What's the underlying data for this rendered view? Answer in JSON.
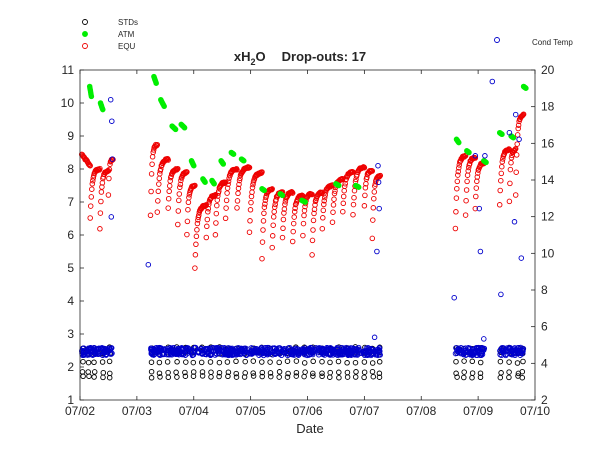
{
  "chart_data": {
    "type": "scatter",
    "title_main": "xH",
    "title_sub": "2",
    "title_tail": "O",
    "title_suffix": "Drop-outs: 17",
    "xlabel": "Date",
    "x_ticks": [
      "07/02",
      "07/03",
      "07/04",
      "07/05",
      "07/06",
      "07/07",
      "07/08",
      "07/09",
      "07/10"
    ],
    "xlim": [
      2,
      10
    ],
    "ylim_left": [
      1,
      11
    ],
    "y_ticks_left": [
      "1",
      "2",
      "3",
      "4",
      "5",
      "6",
      "7",
      "8",
      "9",
      "10",
      "11"
    ],
    "ylim_right": [
      2,
      20
    ],
    "y_ticks_right": [
      "2",
      "4",
      "6",
      "8",
      "10",
      "12",
      "14",
      "16",
      "18",
      "20"
    ],
    "grid": false,
    "legend": {
      "placement": "top-left-outside",
      "entries": [
        {
          "name": "STDs",
          "color": "#000000",
          "marker": "open-circle"
        },
        {
          "name": "ATM",
          "color": "#00ee00",
          "marker": "filled-circle"
        },
        {
          "name": "EQU",
          "color": "#ee0000",
          "marker": "open-circle"
        }
      ]
    },
    "right_axis_label": "Cond Temp",
    "right_axis_label_color": "#0000cc",
    "series": [
      {
        "name": "STDs",
        "axis": "left",
        "color": "#000000",
        "marker": "open-circle",
        "clusters": [
          {
            "start": 2.03,
            "end": 2.58
          },
          {
            "start": 3.24,
            "end": 7.28
          },
          {
            "start": 8.6,
            "end": 9.12
          },
          {
            "start": 9.38,
            "end": 9.8
          }
        ],
        "levels": [
          2.58,
          2.42,
          2.15,
          1.83,
          1.7
        ],
        "sample_days": [
          2.05,
          2.15,
          2.25,
          2.4,
          2.52,
          3.26,
          3.4,
          3.55,
          3.7,
          3.85,
          4.0,
          4.15,
          4.3,
          4.45,
          4.6,
          4.75,
          4.9,
          5.05,
          5.2,
          5.35,
          5.5,
          5.65,
          5.8,
          5.95,
          6.1,
          6.25,
          6.4,
          6.55,
          6.7,
          6.85,
          7.0,
          7.15,
          7.26,
          8.62,
          8.75,
          8.9,
          9.05,
          9.4,
          9.55,
          9.7,
          9.78
        ]
      },
      {
        "name": "ATM",
        "axis": "left",
        "color": "#00ee00",
        "marker": "filled-circle",
        "segments": [
          {
            "x": [
              2.17,
              2.2
            ],
            "y": [
              10.5,
              10.2
            ]
          },
          {
            "x": [
              2.36,
              2.4
            ],
            "y": [
              10.0,
              9.8
            ]
          },
          {
            "x": [
              3.3,
              3.34
            ],
            "y": [
              10.8,
              10.6
            ]
          },
          {
            "x": [
              3.42,
              3.48
            ],
            "y": [
              10.1,
              9.9
            ]
          },
          {
            "x": [
              3.62,
              3.68
            ],
            "y": [
              9.3,
              9.2
            ]
          },
          {
            "x": [
              3.78,
              3.84
            ],
            "y": [
              9.35,
              9.25
            ]
          },
          {
            "x": [
              3.96,
              4.0
            ],
            "y": [
              8.25,
              8.1
            ]
          },
          {
            "x": [
              4.16,
              4.2
            ],
            "y": [
              7.7,
              7.6
            ]
          },
          {
            "x": [
              4.32,
              4.36
            ],
            "y": [
              7.65,
              7.55
            ]
          },
          {
            "x": [
              4.48,
              4.52
            ],
            "y": [
              8.25,
              8.15
            ]
          },
          {
            "x": [
              4.66,
              4.7
            ],
            "y": [
              8.5,
              8.45
            ]
          },
          {
            "x": [
              4.84,
              4.88
            ],
            "y": [
              8.3,
              8.25
            ]
          },
          {
            "x": [
              5.2,
              5.24
            ],
            "y": [
              7.4,
              7.35
            ]
          },
          {
            "x": [
              5.52,
              5.56
            ],
            "y": [
              7.25,
              7.2
            ]
          },
          {
            "x": [
              5.9,
              5.96
            ],
            "y": [
              7.05,
              7.0
            ]
          },
          {
            "x": [
              6.5,
              6.55
            ],
            "y": [
              7.55,
              7.5
            ]
          },
          {
            "x": [
              6.85,
              6.9
            ],
            "y": [
              7.5,
              7.45
            ]
          },
          {
            "x": [
              8.62,
              8.66
            ],
            "y": [
              8.9,
              8.8
            ]
          },
          {
            "x": [
              8.8,
              8.84
            ],
            "y": [
              8.55,
              8.5
            ]
          },
          {
            "x": [
              9.1,
              9.14
            ],
            "y": [
              8.25,
              8.2
            ]
          },
          {
            "x": [
              9.38,
              9.42
            ],
            "y": [
              9.1,
              9.05
            ]
          },
          {
            "x": [
              9.58,
              9.62
            ],
            "y": [
              9.0,
              8.95
            ]
          },
          {
            "x": [
              9.8,
              9.84
            ],
            "y": [
              10.5,
              10.45
            ]
          }
        ]
      },
      {
        "name": "EQU",
        "axis": "left",
        "color": "#ee0000",
        "marker": "open-circle",
        "segments": [
          {
            "x0": 2.03,
            "x1": 2.18,
            "top": 8.45,
            "bottom": 8.1,
            "rise": false
          },
          {
            "x0": 2.18,
            "x1": 2.35,
            "top": 8.0,
            "bottom": 6.5,
            "rise": true
          },
          {
            "x0": 2.35,
            "x1": 2.5,
            "top": 7.95,
            "bottom": 6.2,
            "rise": true
          },
          {
            "x0": 2.5,
            "x1": 2.58,
            "top": 8.3,
            "bottom": 7.2,
            "rise": true
          },
          {
            "x0": 3.24,
            "x1": 3.36,
            "top": 8.75,
            "bottom": 6.6,
            "rise": true
          },
          {
            "x0": 3.36,
            "x1": 3.55,
            "top": 8.3,
            "bottom": 6.7,
            "rise": true
          },
          {
            "x0": 3.55,
            "x1": 3.72,
            "top": 8.0,
            "bottom": 6.8,
            "rise": true
          },
          {
            "x0": 3.72,
            "x1": 3.88,
            "top": 7.9,
            "bottom": 6.3,
            "rise": true
          },
          {
            "x0": 3.88,
            "x1": 4.02,
            "top": 7.5,
            "bottom": 6.0,
            "rise": true
          },
          {
            "x0": 4.02,
            "x1": 4.22,
            "top": 6.9,
            "bottom": 5.0,
            "rise": true
          },
          {
            "x0": 4.22,
            "x1": 4.38,
            "top": 7.2,
            "bottom": 5.9,
            "rise": true
          },
          {
            "x0": 4.38,
            "x1": 4.56,
            "top": 7.6,
            "bottom": 6.0,
            "rise": true
          },
          {
            "x0": 4.56,
            "x1": 4.76,
            "top": 8.0,
            "bottom": 6.5,
            "rise": true
          },
          {
            "x0": 4.76,
            "x1": 4.98,
            "top": 8.05,
            "bottom": 6.8,
            "rise": true
          },
          {
            "x0": 4.98,
            "x1": 5.2,
            "top": 7.9,
            "bottom": 6.1,
            "rise": true
          },
          {
            "x0": 5.2,
            "x1": 5.38,
            "top": 7.4,
            "bottom": 5.3,
            "rise": true
          },
          {
            "x0": 5.38,
            "x1": 5.56,
            "top": 7.3,
            "bottom": 5.6,
            "rise": true
          },
          {
            "x0": 5.56,
            "x1": 5.74,
            "top": 7.3,
            "bottom": 5.9,
            "rise": true
          },
          {
            "x0": 5.74,
            "x1": 5.92,
            "top": 7.2,
            "bottom": 5.8,
            "rise": true
          },
          {
            "x0": 5.92,
            "x1": 6.08,
            "top": 7.25,
            "bottom": 6.0,
            "rise": true
          },
          {
            "x0": 6.08,
            "x1": 6.26,
            "top": 7.3,
            "bottom": 5.4,
            "rise": true
          },
          {
            "x0": 6.26,
            "x1": 6.44,
            "top": 7.5,
            "bottom": 6.2,
            "rise": true
          },
          {
            "x0": 6.44,
            "x1": 6.62,
            "top": 7.7,
            "bottom": 6.4,
            "rise": true
          },
          {
            "x0": 6.62,
            "x1": 6.8,
            "top": 7.9,
            "bottom": 6.7,
            "rise": true
          },
          {
            "x0": 6.8,
            "x1": 7.0,
            "top": 8.05,
            "bottom": 6.6,
            "rise": true
          },
          {
            "x0": 7.0,
            "x1": 7.14,
            "top": 7.95,
            "bottom": 6.9,
            "rise": true
          },
          {
            "x0": 7.14,
            "x1": 7.28,
            "top": 7.8,
            "bottom": 5.9,
            "rise": true
          },
          {
            "x0": 8.6,
            "x1": 8.78,
            "top": 8.4,
            "bottom": 6.2,
            "rise": true
          },
          {
            "x0": 8.78,
            "x1": 8.95,
            "top": 8.35,
            "bottom": 6.6,
            "rise": true
          },
          {
            "x0": 8.95,
            "x1": 9.12,
            "top": 8.2,
            "bottom": 6.8,
            "rise": true
          },
          {
            "x0": 9.38,
            "x1": 9.55,
            "top": 8.6,
            "bottom": 6.9,
            "rise": true
          },
          {
            "x0": 9.55,
            "x1": 9.66,
            "top": 8.6,
            "bottom": 7.0,
            "rise": true
          },
          {
            "x0": 9.66,
            "x1": 9.8,
            "top": 9.65,
            "bottom": 7.2,
            "rise": true
          }
        ]
      },
      {
        "name": "Cond Temp",
        "axis": "left",
        "color": "#0000cc",
        "marker": "open-circle",
        "band": {
          "center": 2.47,
          "spread": 0.12
        },
        "clusters": [
          {
            "start": 2.03,
            "end": 2.58
          },
          {
            "start": 3.24,
            "end": 7.28
          },
          {
            "start": 8.6,
            "end": 9.12
          },
          {
            "start": 9.38,
            "end": 9.8
          }
        ],
        "outliers": {
          "x": [
            2.54,
            2.56,
            2.57,
            2.55,
            3.2,
            7.24,
            7.25,
            7.26,
            7.22,
            8.58,
            8.95,
            9.02,
            9.04,
            9.12,
            9.25,
            9.4,
            9.55,
            9.64,
            9.66,
            9.72,
            9.76,
            9.1,
            8.9,
            7.18
          ],
          "y": [
            10.1,
            9.45,
            8.3,
            6.55,
            5.1,
            8.1,
            7.6,
            6.8,
            5.5,
            4.1,
            8.4,
            6.8,
            5.5,
            8.4,
            10.65,
            4.2,
            9.1,
            6.4,
            9.65,
            8.9,
            5.3,
            2.85,
            2.4,
            2.9
          ]
        }
      }
    ]
  }
}
